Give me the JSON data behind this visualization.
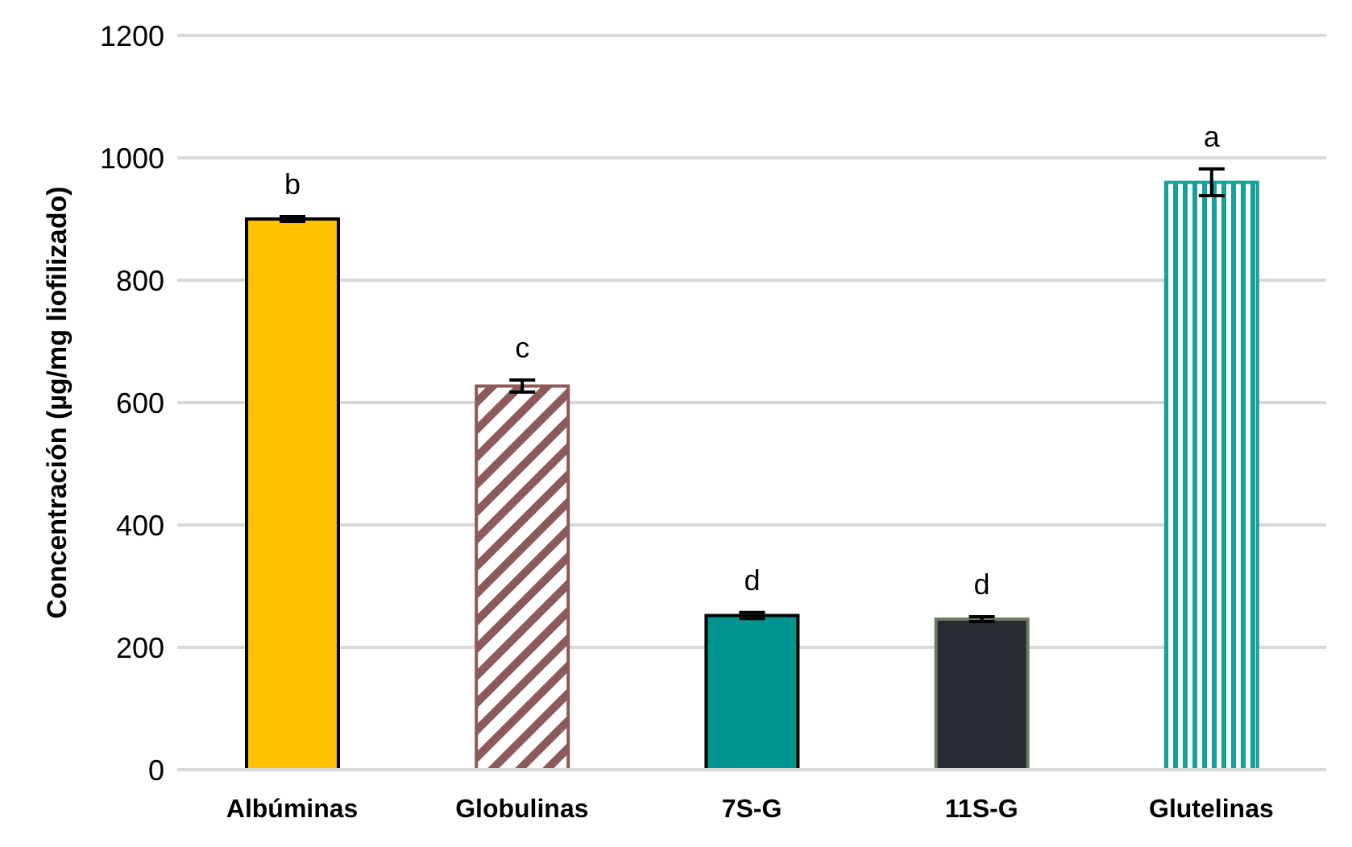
{
  "chart_data": {
    "type": "bar",
    "ylabel": "Concentración  (µg/mg liofilizado)",
    "categories": [
      "Albúminas",
      "Globulinas",
      "7S-G",
      "11S-G",
      "Glutelinas"
    ],
    "values": [
      900,
      627,
      252,
      246,
      960
    ],
    "errors": [
      4,
      10,
      5,
      4,
      22
    ],
    "colors": [
      "#ffc000",
      "#8c5a5a",
      "#009490",
      "#262a33",
      "#17a09a"
    ],
    "annotations": [
      "b",
      "c",
      "d",
      "d",
      "a"
    ],
    "ylim": [
      0,
      1200
    ],
    "yticks": [
      0,
      200,
      400,
      600,
      800,
      1000,
      1200
    ],
    "grid": "y"
  }
}
